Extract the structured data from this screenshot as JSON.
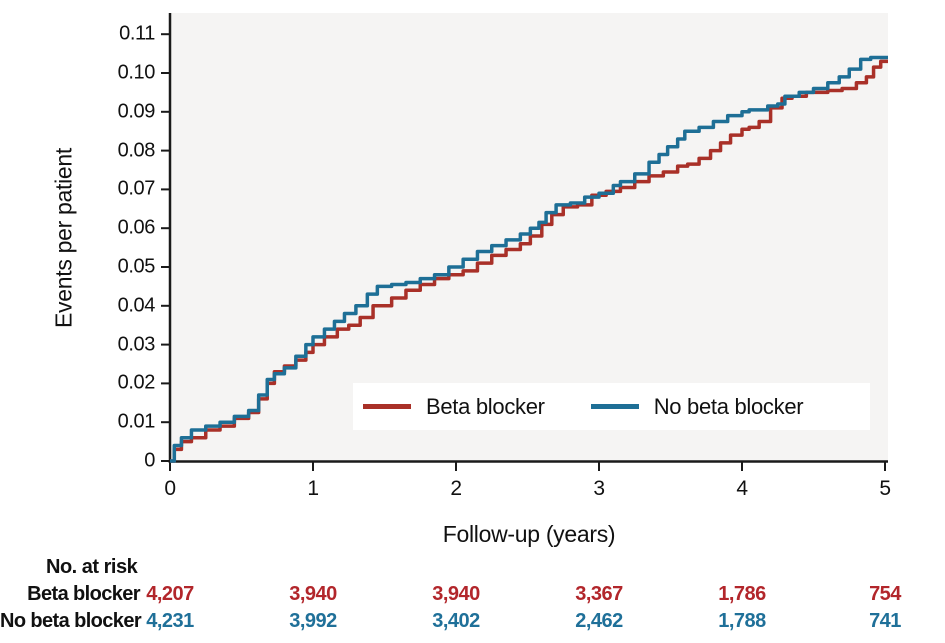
{
  "colors": {
    "beta_line": "#a93028",
    "no_beta_line": "#1e6f96",
    "beta_text": "#b2262b",
    "no_beta_text": "#1f7099",
    "plot_bg": "#f5f4f3",
    "axis": "#1a1a1a",
    "text": "#111111",
    "legend_bg": "#ffffff"
  },
  "axes": {
    "ylabel": "Events per patient",
    "xlabel": "Follow-up (years)"
  },
  "legend": {
    "items": [
      {
        "label": "Beta blocker",
        "color": "#a93028"
      },
      {
        "label": "No beta blocker",
        "color": "#1e6f96"
      }
    ]
  },
  "at_risk": {
    "title": "No. at risk",
    "rows": [
      {
        "label": "Beta blocker",
        "color": "#b2262b",
        "values": [
          "4,207",
          "3,940",
          "3,940",
          "3,367",
          "1,786",
          "754"
        ]
      },
      {
        "label": "No beta blocker",
        "color": "#1f7099",
        "values": [
          "4,231",
          "3,992",
          "3,402",
          "2,462",
          "1,788",
          "741"
        ]
      }
    ]
  },
  "chart_data": {
    "type": "line",
    "subtype": "step-cumulative-incidence",
    "title": "",
    "xlabel": "Follow-up (years)",
    "ylabel": "Events per patient",
    "xlim": [
      0,
      5
    ],
    "ylim": [
      0,
      0.11
    ],
    "grid": false,
    "legend_position": "inside lower right",
    "xticks": [
      0,
      1,
      2,
      3,
      4,
      5
    ],
    "xtick_labels": [
      "0",
      "1",
      "2",
      "3",
      "4",
      "5"
    ],
    "yticks": [
      0,
      0.01,
      0.02,
      0.03,
      0.04,
      0.05,
      0.06,
      0.07,
      0.08,
      0.09,
      0.1,
      0.11
    ],
    "ytick_labels": [
      "0",
      "0.01",
      "0.02",
      "0.03",
      "0.04",
      "0.05",
      "0.06",
      "0.07",
      "0.08",
      "0.09",
      "0.10",
      "0.11"
    ],
    "series": [
      {
        "name": "Beta blocker",
        "color": "#a93028",
        "x": [
          0,
          0.03,
          0.08,
          0.15,
          0.25,
          0.35,
          0.45,
          0.55,
          0.62,
          0.68,
          0.73,
          0.8,
          0.88,
          0.95,
          1.0,
          1.08,
          1.17,
          1.25,
          1.33,
          1.42,
          1.55,
          1.65,
          1.75,
          1.85,
          1.95,
          2.05,
          2.15,
          2.25,
          2.35,
          2.45,
          2.52,
          2.6,
          2.67,
          2.75,
          2.85,
          2.95,
          3.05,
          3.15,
          3.25,
          3.35,
          3.45,
          3.55,
          3.62,
          3.7,
          3.78,
          3.85,
          3.92,
          4.0,
          4.05,
          4.12,
          4.2,
          4.28,
          4.35,
          4.45,
          4.6,
          4.7,
          4.8,
          4.87,
          4.92,
          4.97,
          5.0
        ],
        "y": [
          0,
          0.003,
          0.005,
          0.006,
          0.008,
          0.009,
          0.011,
          0.0125,
          0.016,
          0.02,
          0.023,
          0.0245,
          0.026,
          0.028,
          0.03,
          0.032,
          0.034,
          0.035,
          0.037,
          0.04,
          0.042,
          0.044,
          0.0455,
          0.047,
          0.048,
          0.049,
          0.051,
          0.053,
          0.0545,
          0.056,
          0.058,
          0.061,
          0.0635,
          0.0655,
          0.066,
          0.0685,
          0.0695,
          0.0705,
          0.072,
          0.0735,
          0.0745,
          0.076,
          0.0765,
          0.078,
          0.08,
          0.082,
          0.084,
          0.0855,
          0.086,
          0.0875,
          0.091,
          0.0935,
          0.094,
          0.095,
          0.0955,
          0.096,
          0.0975,
          0.099,
          0.1015,
          0.103,
          0.103
        ]
      },
      {
        "name": "No beta blocker",
        "color": "#1e6f96",
        "x": [
          0,
          0.03,
          0.08,
          0.15,
          0.25,
          0.35,
          0.45,
          0.55,
          0.62,
          0.68,
          0.73,
          0.8,
          0.88,
          0.95,
          1.0,
          1.08,
          1.15,
          1.22,
          1.3,
          1.38,
          1.45,
          1.55,
          1.65,
          1.75,
          1.85,
          1.95,
          2.05,
          2.15,
          2.25,
          2.35,
          2.45,
          2.52,
          2.58,
          2.63,
          2.7,
          2.8,
          2.9,
          3.0,
          3.1,
          3.15,
          3.25,
          3.35,
          3.42,
          3.48,
          3.55,
          3.6,
          3.7,
          3.8,
          3.9,
          4.0,
          4.05,
          4.18,
          4.25,
          4.3,
          4.4,
          4.5,
          4.6,
          4.68,
          4.75,
          4.83,
          4.9,
          5.0
        ],
        "y": [
          0,
          0.004,
          0.006,
          0.008,
          0.009,
          0.01,
          0.0115,
          0.013,
          0.017,
          0.021,
          0.0225,
          0.024,
          0.027,
          0.03,
          0.032,
          0.034,
          0.036,
          0.038,
          0.04,
          0.043,
          0.045,
          0.0455,
          0.046,
          0.047,
          0.048,
          0.05,
          0.052,
          0.054,
          0.0555,
          0.057,
          0.0585,
          0.06,
          0.0615,
          0.064,
          0.066,
          0.0665,
          0.068,
          0.069,
          0.071,
          0.072,
          0.074,
          0.077,
          0.079,
          0.081,
          0.083,
          0.085,
          0.086,
          0.0875,
          0.089,
          0.09,
          0.0905,
          0.0915,
          0.092,
          0.094,
          0.095,
          0.096,
          0.0975,
          0.099,
          0.101,
          0.1035,
          0.104,
          0.104
        ]
      }
    ]
  }
}
